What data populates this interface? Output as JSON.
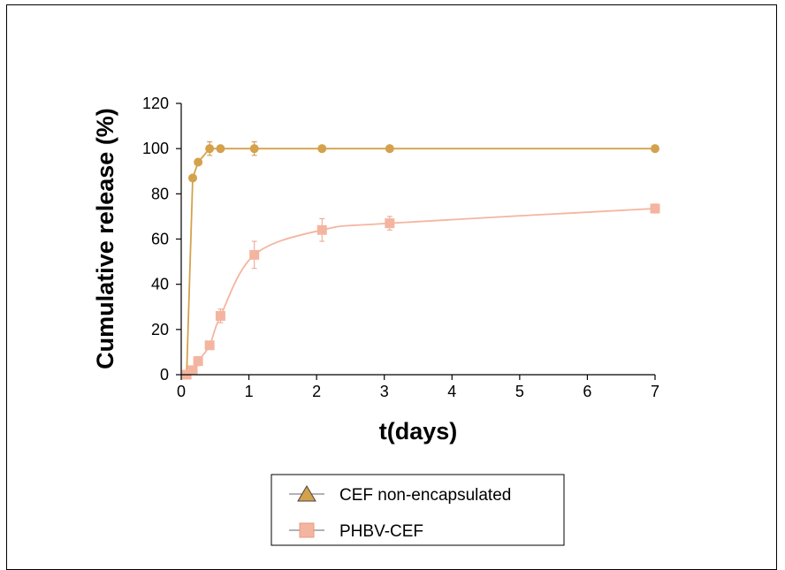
{
  "chart_data": {
    "type": "line",
    "title": "",
    "xlabel": "t(days)",
    "ylabel": "Cumulative release (%)",
    "xlim": [
      0,
      7
    ],
    "ylim": [
      0,
      120
    ],
    "xticks": [
      0,
      1,
      2,
      3,
      4,
      5,
      6,
      7
    ],
    "yticks": [
      0,
      20,
      40,
      60,
      80,
      100,
      120
    ],
    "grid": false,
    "legend_position": "bottom",
    "series": [
      {
        "name": "CEF non-encapsulated",
        "color": "#D4A24C",
        "marker": "circle",
        "legend_marker": "triangle",
        "x": [
          0.08,
          0.17,
          0.25,
          0.42,
          0.58,
          1.08,
          2.08,
          3.08,
          7.0
        ],
        "y": [
          0,
          87,
          94,
          100,
          100,
          100,
          100,
          100,
          100
        ],
        "err": [
          0,
          0,
          0,
          3,
          0,
          3,
          0,
          0,
          0
        ]
      },
      {
        "name": "PHBV-CEF",
        "color": "#F4B5A0",
        "marker": "square",
        "legend_marker": "square",
        "x": [
          0.08,
          0.17,
          0.25,
          0.42,
          0.58,
          1.08,
          2.08,
          3.08,
          7.0
        ],
        "y": [
          0,
          2,
          6,
          13,
          26,
          53,
          64,
          67,
          73.5
        ],
        "err": [
          0,
          1,
          2,
          1,
          3,
          6,
          5,
          3,
          2
        ]
      }
    ]
  }
}
